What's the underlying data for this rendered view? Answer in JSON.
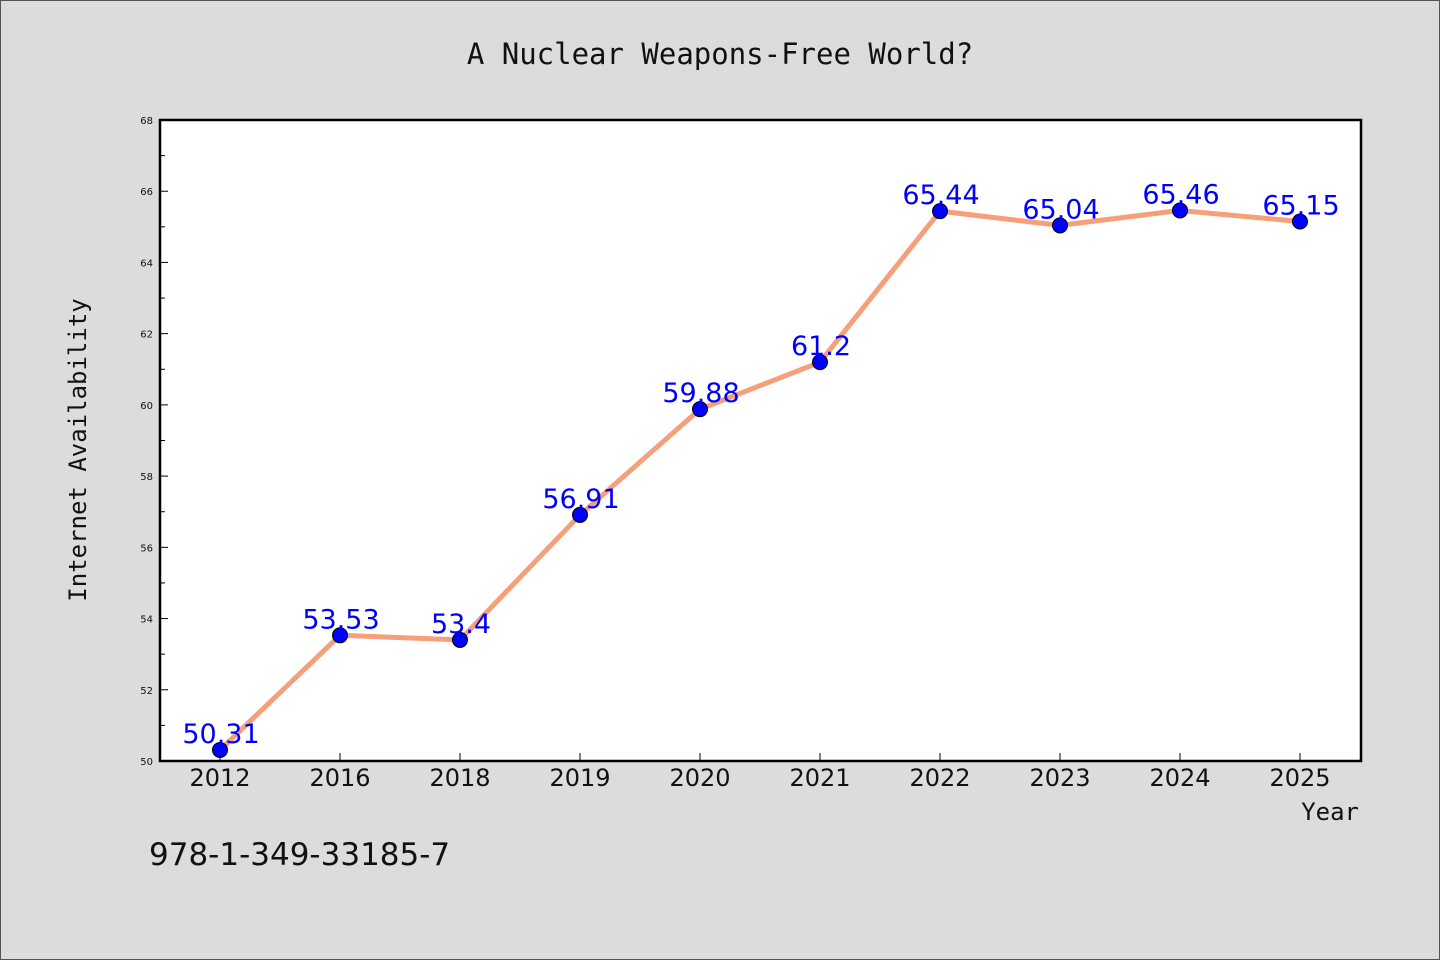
{
  "chart_data": {
    "type": "line",
    "title": "A Nuclear Weapons-Free World?",
    "xlabel": "Year",
    "ylabel": "Internet Availability",
    "categories": [
      "2012",
      "2016",
      "2018",
      "2019",
      "2020",
      "2021",
      "2022",
      "2023",
      "2024",
      "2025"
    ],
    "series": [
      {
        "values": [
          50.31,
          53.53,
          53.4,
          56.91,
          59.88,
          61.2,
          65.44,
          65.04,
          65.46,
          65.15
        ]
      }
    ],
    "data_labels": [
      "50.31",
      "53.53",
      "53.4",
      "56.91",
      "59.88",
      "61.2",
      "65.44",
      "65.04",
      "65.46",
      "65.15"
    ],
    "ylim": [
      50,
      68
    ],
    "y_ticks": [
      "50",
      "52",
      "54",
      "56",
      "58",
      "60",
      "62",
      "64",
      "66",
      "68"
    ],
    "grid": false,
    "legend": "none",
    "colors": {
      "line": "#f5a07a",
      "marker": "#0000ff",
      "label": "#0000ff",
      "background": "#dcdcdc",
      "plot_area": "#ffffff"
    }
  },
  "footer": {
    "text": "978-1-349-33185-7"
  }
}
